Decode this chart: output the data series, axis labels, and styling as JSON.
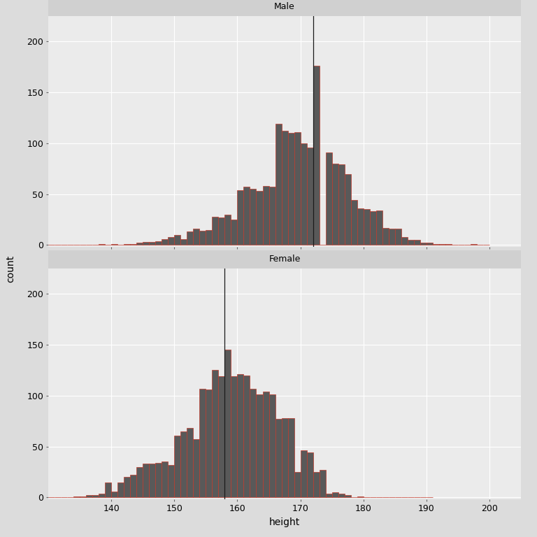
{
  "male_vline": 172.0,
  "female_vline": 158.0,
  "xlim": [
    130,
    205
  ],
  "ylim": [
    -2,
    225
  ],
  "xticks": [
    140,
    150,
    160,
    170,
    180,
    190,
    200
  ],
  "yticks": [
    0,
    50,
    100,
    150,
    200
  ],
  "bin_width": 1,
  "bar_color": "#595959",
  "bar_edge_color": "#c0392b",
  "background_color": "#dcdcdc",
  "plot_bg_color": "#ebebeb",
  "strip_bg_color": "#d0d0d0",
  "grid_color": "#ffffff",
  "vline_color": "#1a1a1a",
  "title_male": "Male",
  "title_female": "Female",
  "xlabel": "height",
  "ylabel": "count",
  "male_bins_left": [
    130,
    131,
    132,
    133,
    134,
    135,
    136,
    137,
    138,
    139,
    140,
    141,
    142,
    143,
    144,
    145,
    146,
    147,
    148,
    149,
    150,
    151,
    152,
    153,
    154,
    155,
    156,
    157,
    158,
    159,
    160,
    161,
    162,
    163,
    164,
    165,
    166,
    167,
    168,
    169,
    170,
    171,
    172,
    173,
    174,
    175,
    176,
    177,
    178,
    179,
    180,
    181,
    182,
    183,
    184,
    185,
    186,
    187,
    188,
    189,
    190,
    191,
    192,
    193,
    194,
    195,
    196,
    197,
    198,
    199
  ],
  "male_counts": [
    0,
    0,
    0,
    0,
    0,
    0,
    0,
    0,
    1,
    0,
    1,
    0,
    1,
    1,
    2,
    3,
    3,
    4,
    6,
    8,
    10,
    6,
    13,
    16,
    14,
    15,
    28,
    27,
    30,
    25,
    54,
    57,
    55,
    53,
    58,
    57,
    119,
    112,
    110,
    111,
    100,
    96,
    176,
    0,
    91,
    80,
    79,
    70,
    44,
    36,
    35,
    33,
    34,
    17,
    16,
    16,
    8,
    5,
    5,
    2,
    2,
    1,
    1,
    1,
    0,
    0,
    0,
    1,
    0,
    0
  ],
  "female_bins_left": [
    130,
    131,
    132,
    133,
    134,
    135,
    136,
    137,
    138,
    139,
    140,
    141,
    142,
    143,
    144,
    145,
    146,
    147,
    148,
    149,
    150,
    151,
    152,
    153,
    154,
    155,
    156,
    157,
    158,
    159,
    160,
    161,
    162,
    163,
    164,
    165,
    166,
    167,
    168,
    169,
    170,
    171,
    172,
    173,
    174,
    175,
    176,
    177,
    178,
    179,
    180,
    181,
    182,
    183,
    184,
    185,
    186,
    187,
    188,
    189,
    190
  ],
  "female_counts": [
    0,
    0,
    0,
    0,
    1,
    1,
    2,
    2,
    4,
    15,
    6,
    15,
    20,
    22,
    30,
    33,
    33,
    34,
    35,
    32,
    61,
    65,
    68,
    57,
    107,
    106,
    125,
    119,
    145,
    119,
    121,
    120,
    107,
    101,
    104,
    101,
    77,
    78,
    78,
    25,
    46,
    44,
    25,
    27,
    4,
    5,
    4,
    2,
    0,
    1,
    0,
    0,
    0,
    0,
    0,
    0,
    0,
    0,
    0,
    0,
    0
  ]
}
